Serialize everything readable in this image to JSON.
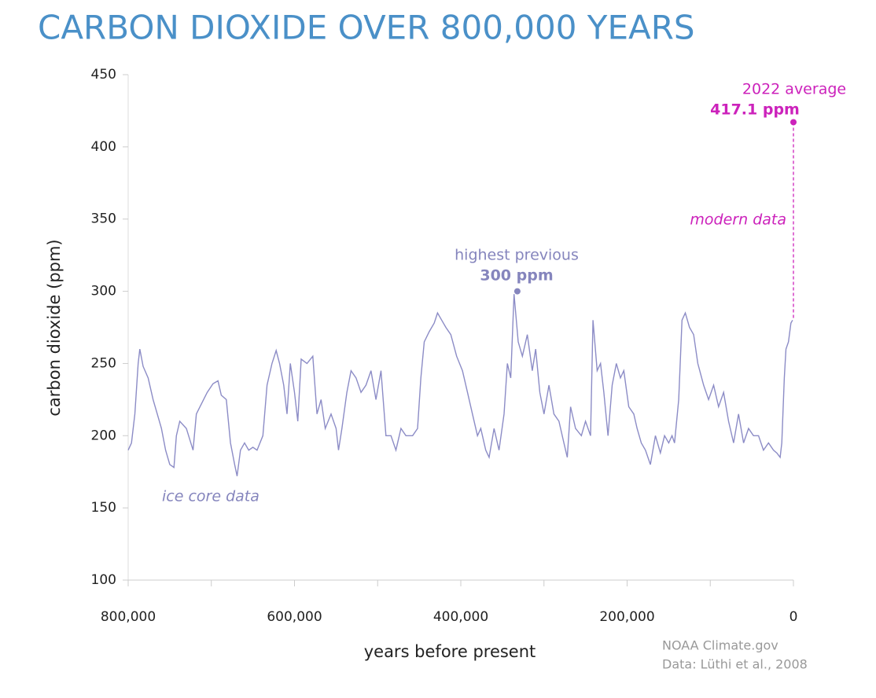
{
  "chart_data": {
    "type": "line",
    "title": "CARBON DIOXIDE OVER 800,000 YEARS",
    "xlabel": "years before present",
    "ylabel": "carbon dioxide (ppm)",
    "xlim": [
      800000,
      0
    ],
    "ylim": [
      100,
      450
    ],
    "yticks": [
      100,
      150,
      200,
      250,
      300,
      350,
      400,
      450
    ],
    "xticks": [
      {
        "value": 800000,
        "label": "800,000"
      },
      {
        "value": 600000,
        "label": "600,000"
      },
      {
        "value": 400000,
        "label": "400,000"
      },
      {
        "value": 200000,
        "label": "200,000"
      },
      0
    ],
    "xminorticks": [
      700000,
      500000,
      300000,
      100000
    ],
    "series": [
      {
        "name": "ice core data",
        "color": "#8c8cc6",
        "x": [
          800000,
          796000,
          792000,
          788000,
          786000,
          782000,
          776000,
          770000,
          765000,
          760000,
          755000,
          750000,
          745000,
          742000,
          738000,
          730000,
          722000,
          718000,
          712000,
          705000,
          698000,
          692000,
          688000,
          682000,
          677000,
          672000,
          669000,
          665000,
          660000,
          655000,
          650000,
          645000,
          638000,
          633000,
          627000,
          622000,
          618000,
          613000,
          609000,
          605000,
          600000,
          596000,
          592000,
          585000,
          578000,
          573000,
          568000,
          563000,
          556000,
          550000,
          547000,
          543000,
          537000,
          532000,
          526000,
          520000,
          514000,
          508000,
          502000,
          496000,
          490000,
          484000,
          478000,
          472000,
          466000,
          458000,
          452000,
          448000,
          444000,
          438000,
          432000,
          428000,
          423000,
          418000,
          412000,
          405000,
          398000,
          392000,
          386000,
          380000,
          376000,
          370000,
          366000,
          360000,
          354000,
          348000,
          344000,
          340000,
          336000,
          331000,
          326000,
          320000,
          314000,
          310000,
          305000,
          300000,
          294000,
          288000,
          282000,
          276000,
          272000,
          268000,
          262000,
          255000,
          250000,
          244000,
          241000,
          236000,
          232000,
          228000,
          223000,
          218000,
          213000,
          208000,
          204000,
          198000,
          192000,
          188000,
          183000,
          178000,
          172000,
          166000,
          160000,
          155000,
          150000,
          146000,
          143000,
          138000,
          134000,
          130000,
          125000,
          120000,
          115000,
          108000,
          102000,
          96000,
          90000,
          84000,
          78000,
          72000,
          66000,
          60000,
          54000,
          48000,
          42000,
          36000,
          30000,
          24000,
          20000,
          16000,
          14000,
          11000,
          9000,
          6000,
          3000,
          1000
        ],
        "values": [
          190,
          195,
          215,
          250,
          260,
          248,
          240,
          225,
          215,
          205,
          190,
          180,
          178,
          200,
          210,
          205,
          190,
          215,
          222,
          230,
          236,
          238,
          228,
          225,
          195,
          180,
          172,
          190,
          195,
          190,
          192,
          190,
          200,
          235,
          250,
          259,
          250,
          235,
          215,
          250,
          230,
          210,
          253,
          250,
          255,
          215,
          225,
          205,
          215,
          205,
          190,
          205,
          230,
          245,
          240,
          230,
          235,
          245,
          225,
          245,
          200,
          200,
          190,
          205,
          200,
          200,
          205,
          240,
          265,
          272,
          278,
          285,
          280,
          275,
          270,
          255,
          245,
          230,
          215,
          200,
          205,
          190,
          185,
          205,
          190,
          215,
          250,
          240,
          298,
          265,
          255,
          270,
          245,
          260,
          230,
          215,
          235,
          215,
          210,
          195,
          185,
          220,
          205,
          200,
          210,
          200,
          280,
          245,
          250,
          230,
          200,
          235,
          250,
          240,
          245,
          220,
          215,
          205,
          195,
          190,
          180,
          200,
          188,
          200,
          195,
          200,
          195,
          225,
          280,
          285,
          275,
          270,
          250,
          235,
          225,
          235,
          220,
          230,
          210,
          195,
          215,
          195,
          205,
          200,
          200,
          190,
          195,
          190,
          188,
          185,
          195,
          240,
          260,
          265,
          278,
          280
        ]
      }
    ],
    "modern": {
      "name": "modern data",
      "label": "2022 average",
      "x": 0,
      "value": 417.1,
      "value_label": "417.1 ppm",
      "color": "#cc22bb"
    },
    "highest": {
      "label": "highest previous",
      "x": 332000,
      "value": 300,
      "value_label": "300 ppm",
      "color": "#8585bd"
    },
    "title_color": "#4a90c8",
    "source": [
      "NOAA Climate.gov",
      "Data: Lüthi et al., 2008"
    ]
  }
}
